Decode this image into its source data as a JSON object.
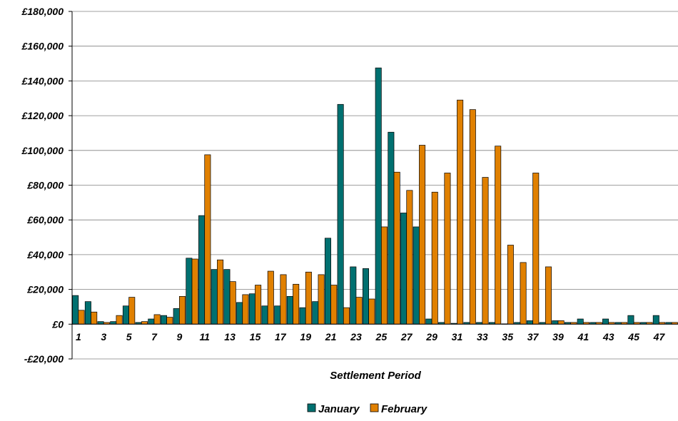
{
  "chart_data": {
    "type": "bar",
    "title": "",
    "xlabel": "Settlement Period",
    "ylabel": "",
    "ylim": [
      -20000,
      180000
    ],
    "ytick_step": 20000,
    "ytick_labels": [
      "£180,000",
      "£160,000",
      "£140,000",
      "£120,000",
      "£100,000",
      "£80,000",
      "£60,000",
      "£40,000",
      "£20,000",
      "£0",
      "-£20,000"
    ],
    "ytick_values": [
      180000,
      160000,
      140000,
      120000,
      100000,
      80000,
      60000,
      40000,
      20000,
      0,
      -20000
    ],
    "grid": true,
    "legend_position": "bottom-center",
    "categories": [
      1,
      2,
      3,
      4,
      5,
      6,
      7,
      8,
      9,
      10,
      11,
      12,
      13,
      14,
      15,
      16,
      17,
      18,
      19,
      20,
      21,
      22,
      23,
      24,
      25,
      26,
      27,
      28,
      29,
      30,
      31,
      32,
      33,
      34,
      35,
      36,
      37,
      38,
      39,
      40,
      41,
      42,
      43,
      44,
      45,
      46,
      47,
      48
    ],
    "x_tick_labels": [
      "1",
      "3",
      "5",
      "7",
      "9",
      "11",
      "13",
      "15",
      "17",
      "19",
      "21",
      "23",
      "25",
      "27",
      "29",
      "31",
      "33",
      "35",
      "37",
      "39",
      "41",
      "43",
      "45",
      "47"
    ],
    "series": [
      {
        "name": "January",
        "color": "#007070",
        "values": [
          16500,
          13000,
          1500,
          1500,
          10500,
          1000,
          3000,
          5000,
          9000,
          38000,
          62500,
          31500,
          31500,
          12500,
          17500,
          10500,
          10500,
          16000,
          9500,
          13000,
          49500,
          126500,
          33000,
          32000,
          147500,
          110500,
          64000,
          56000,
          3000,
          1000,
          500,
          1000,
          1000,
          1000,
          200,
          1000,
          2000,
          1000,
          2000,
          1000,
          3000,
          1000,
          3000,
          1000,
          5000,
          1000,
          5000,
          1000
        ]
      },
      {
        "name": "February",
        "color": "#E08000",
        "values": [
          8000,
          7000,
          1000,
          5000,
          15500,
          1500,
          5500,
          4000,
          16000,
          37500,
          97500,
          37000,
          24500,
          17000,
          22500,
          30500,
          28500,
          23000,
          30000,
          28500,
          22500,
          9500,
          15500,
          14500,
          56000,
          87500,
          77000,
          103000,
          76000,
          87000,
          129000,
          123500,
          84500,
          102500,
          45500,
          35500,
          87000,
          33000,
          2000,
          1000,
          1000,
          1000,
          1000,
          1000,
          1000,
          1000,
          1000,
          1000
        ]
      }
    ]
  }
}
